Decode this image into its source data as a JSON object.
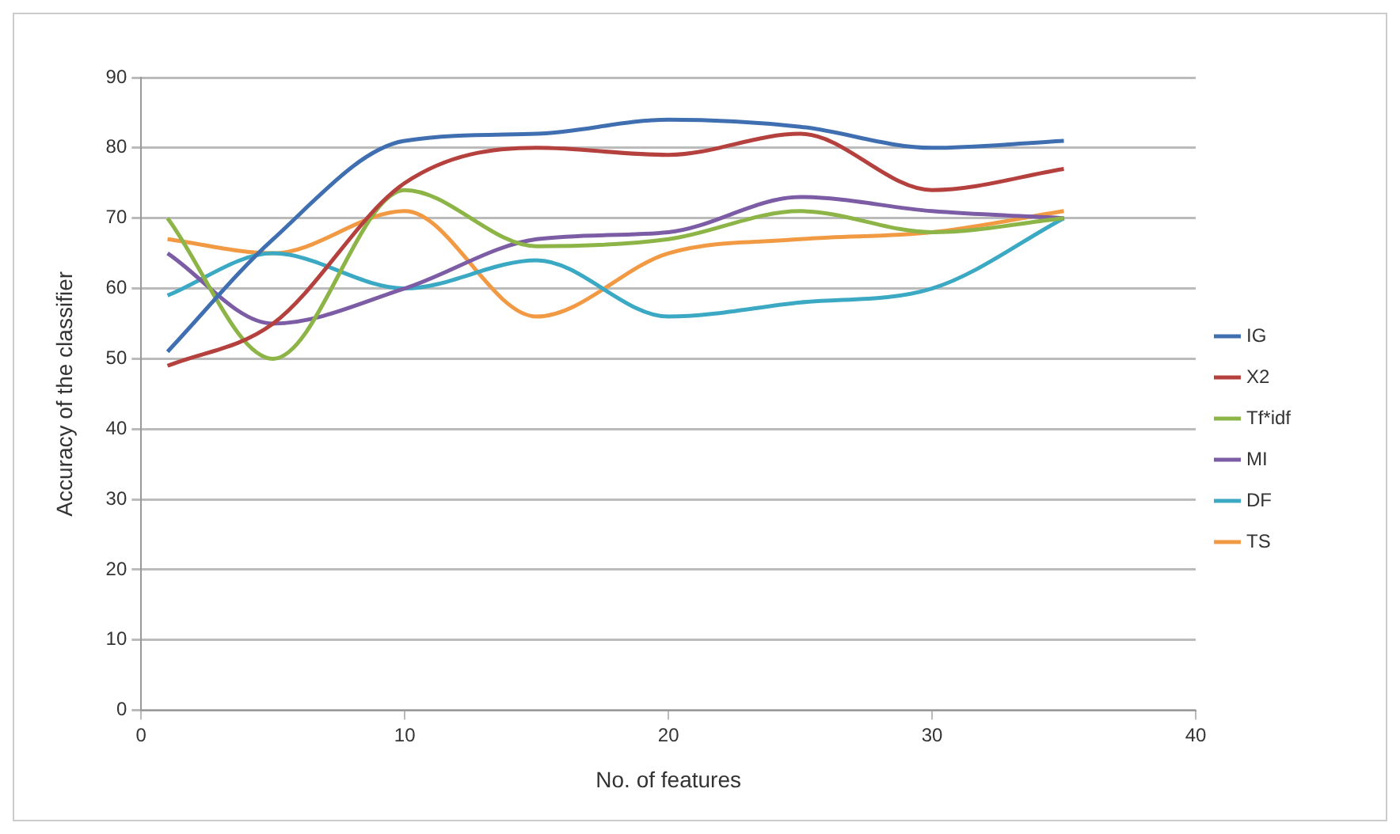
{
  "chart_data": {
    "type": "line",
    "xlabel": "No. of features",
    "ylabel": "Accuracy of the classifier",
    "x": [
      1,
      5,
      10,
      15,
      20,
      25,
      30,
      35
    ],
    "xlim": [
      0,
      40
    ],
    "xticks": [
      0,
      10,
      20,
      30,
      40
    ],
    "ylim": [
      0,
      90
    ],
    "yticks": [
      0,
      10,
      20,
      30,
      40,
      50,
      60,
      70,
      80,
      90
    ],
    "grid": "y",
    "legend": "right",
    "marker": "none",
    "line_style": "solid",
    "series": [
      {
        "name": "IG",
        "color": "#3f6fb0",
        "values": [
          51,
          67,
          81,
          82,
          84,
          83,
          80,
          81
        ]
      },
      {
        "name": "X2",
        "color": "#b5413e",
        "values": [
          49,
          55,
          75,
          80,
          79,
          82,
          74,
          77
        ]
      },
      {
        "name": "Tf*idf",
        "color": "#8cb446",
        "values": [
          70,
          50,
          74,
          66,
          67,
          71,
          68,
          70
        ]
      },
      {
        "name": "MI",
        "color": "#7b5ca5",
        "values": [
          65,
          55,
          60,
          67,
          68,
          73,
          71,
          70
        ]
      },
      {
        "name": "DF",
        "color": "#3ca9c4",
        "values": [
          59,
          65,
          60,
          64,
          56,
          58,
          60,
          70
        ]
      },
      {
        "name": "TS",
        "color": "#f19a43",
        "values": [
          67,
          65,
          71,
          56,
          65,
          67,
          68,
          71
        ]
      }
    ]
  }
}
